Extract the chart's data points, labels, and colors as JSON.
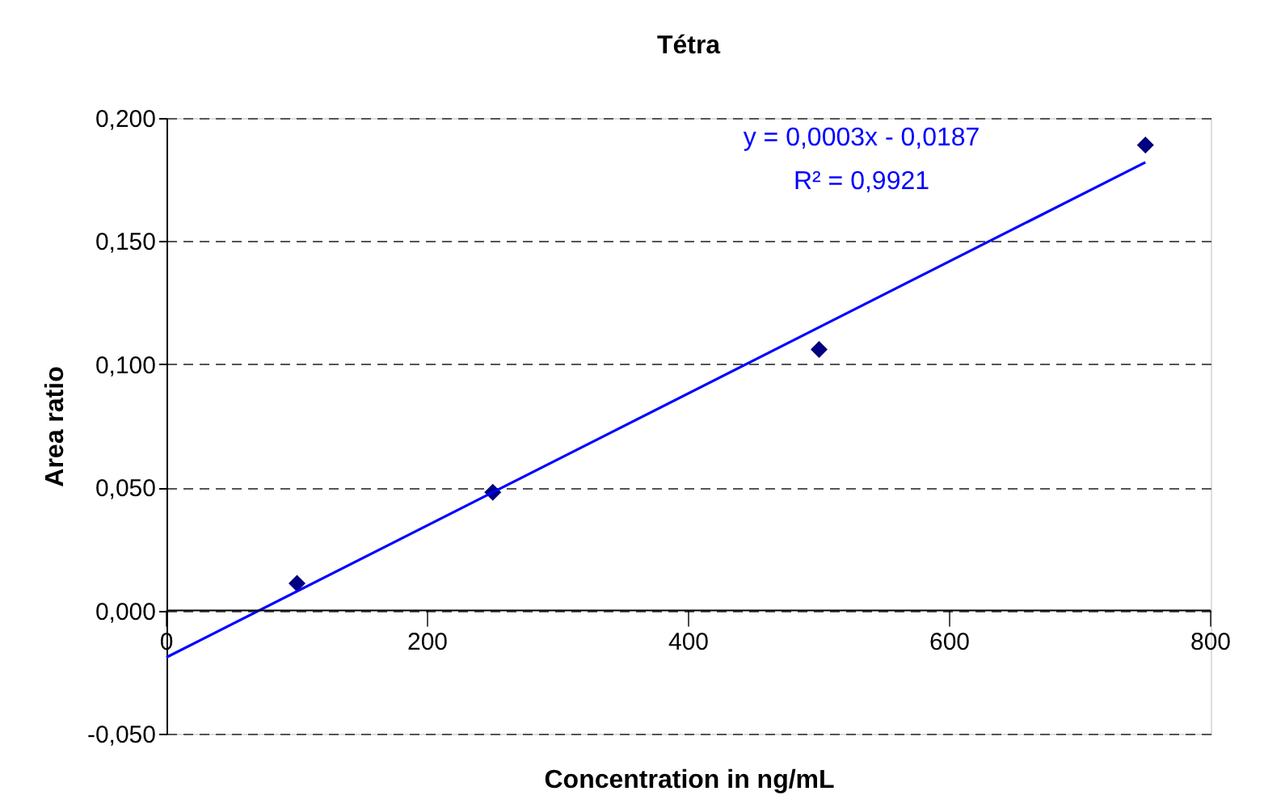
{
  "chart_data": {
    "type": "scatter",
    "title": "Tétra",
    "xlabel": "Concentration in ng/mL",
    "ylabel": "Area ratio",
    "xlim": [
      0,
      800
    ],
    "xticks": [
      0,
      200,
      400,
      600,
      800
    ],
    "ylim": [
      -0.05,
      0.2
    ],
    "yticks": [
      {
        "value": -0.05,
        "label": "-0,050"
      },
      {
        "value": 0,
        "label": "0,000"
      },
      {
        "value": 0.05,
        "label": "0,050"
      },
      {
        "value": 0.1,
        "label": "0,100"
      },
      {
        "value": 0.15,
        "label": "0,150"
      },
      {
        "value": 0.2,
        "label": "0,200"
      }
    ],
    "grid": "y",
    "series": [
      {
        "color": "#000080",
        "marker": "diamond",
        "x": [
          100,
          250,
          500,
          750
        ],
        "values": [
          0.011,
          0.048,
          0.106,
          0.189
        ]
      },
      {
        "type": "line",
        "color": "#0000ff",
        "x": [
          0,
          750
        ],
        "values": [
          -0.019,
          0.182
        ],
        "line_style": "solid",
        "marker": "none"
      }
    ],
    "annotations": [
      "y = 0,0003x - 0,0187",
      "R² = 0,9921"
    ]
  }
}
